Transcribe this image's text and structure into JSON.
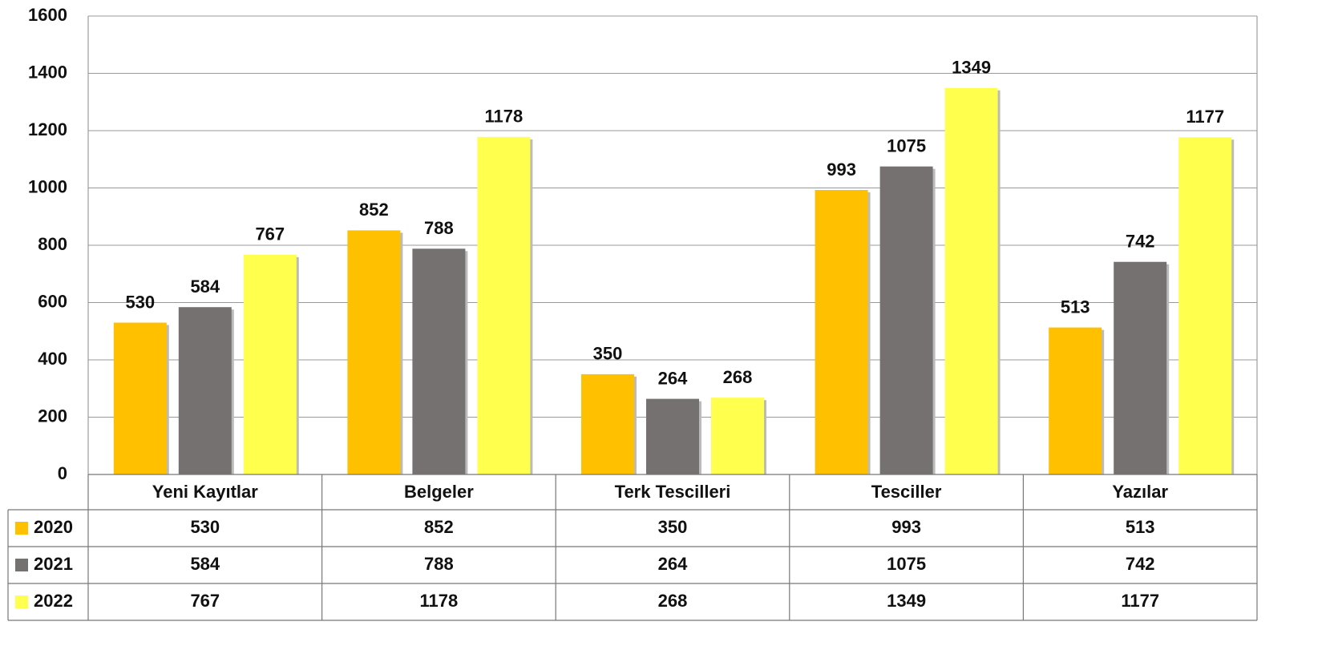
{
  "chart_data": {
    "type": "bar",
    "categories": [
      "Yeni Kayıtlar",
      "Belgeler",
      "Terk Tescilleri",
      "Tesciller",
      "Yazılar"
    ],
    "series": [
      {
        "name": "2020",
        "color": "#FFC000",
        "values": [
          530,
          852,
          350,
          993,
          513
        ]
      },
      {
        "name": "2021",
        "color": "#767171",
        "values": [
          584,
          788,
          264,
          1075,
          742
        ]
      },
      {
        "name": "2022",
        "color": "#FFFF4D",
        "values": [
          767,
          1178,
          268,
          1349,
          1177
        ]
      }
    ],
    "ylim": [
      0,
      1600
    ],
    "yticks": [
      0,
      200,
      400,
      600,
      800,
      1000,
      1200,
      1400,
      1600
    ],
    "grid": true
  }
}
